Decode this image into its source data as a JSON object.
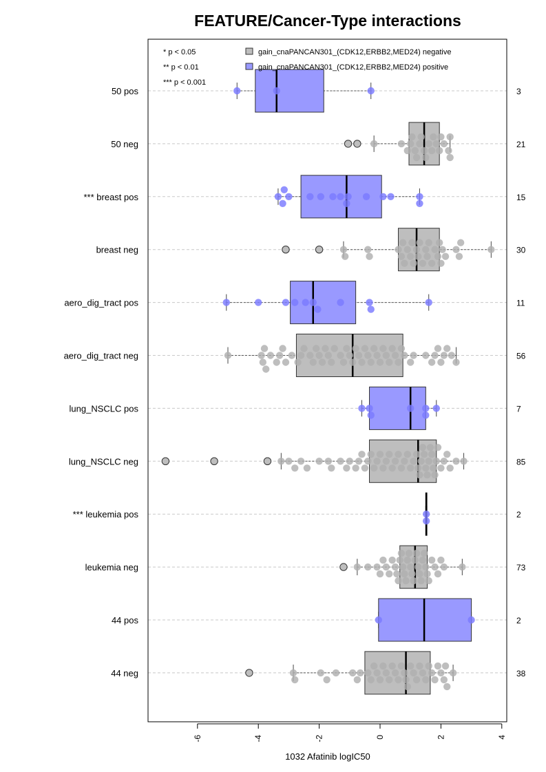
{
  "chart_data": {
    "type": "box",
    "orientation": "horizontal",
    "title": "FEATURE/Cancer-Type interactions",
    "xlabel": "1032 Afatinib logIC50",
    "xlim": [
      -7.2,
      4.0
    ],
    "xticks": [
      -6,
      -4,
      -2,
      0,
      2,
      4
    ],
    "xtick_labels": [
      "-6",
      "-4",
      "-2",
      "0",
      "2",
      "4"
    ],
    "significance_legend": [
      "* p < 0.05",
      "** p < 0.01",
      "*** p < 0.001"
    ],
    "legend": {
      "placement": "top",
      "entries": [
        {
          "name": "gain_cnaPANCAN301_(CDK12,ERBB2,MED24) negative",
          "color": "#bebebe"
        },
        {
          "name": "gain_cnaPANCAN301_(CDK12,ERBB2,MED24) positive",
          "color": "#9999ff"
        }
      ]
    },
    "colors": {
      "negative": "#bebebe",
      "positive": "#9999ff",
      "neg_point": "#b0b0b0",
      "pos_point": "#7a7aff"
    },
    "groups": [
      {
        "label": "50 pos",
        "n": "3",
        "type": "positive",
        "q1": -4.1,
        "median": -3.4,
        "q3": -1.85,
        "whisker_low": -4.7,
        "whisker_high": -0.3,
        "outliers": [],
        "points": [
          -4.7,
          -3.4,
          -0.3
        ]
      },
      {
        "label": "50 neg",
        "n": "21",
        "type": "negative",
        "q1": 0.95,
        "median": 1.45,
        "q3": 1.95,
        "whisker_low": -0.2,
        "whisker_high": 2.3,
        "outliers": [
          -1.05,
          -0.75
        ],
        "points": [
          -0.2,
          0.7,
          0.9,
          1.0,
          1.05,
          1.15,
          1.2,
          1.3,
          1.35,
          1.45,
          1.5,
          1.6,
          1.7,
          1.75,
          1.85,
          1.95,
          2.0,
          2.1,
          2.25,
          2.3,
          2.3
        ]
      },
      {
        "label": "*** breast pos",
        "n": "15",
        "type": "positive",
        "q1": -2.6,
        "median": -1.1,
        "q3": 0.05,
        "whisker_low": -3.35,
        "whisker_high": 1.3,
        "outliers": [],
        "points": [
          -3.35,
          -3.2,
          -3.15,
          -3.0,
          -2.3,
          -1.95,
          -1.55,
          -1.3,
          -1.1,
          -1.05,
          -0.45,
          0.1,
          0.35,
          1.3,
          1.3
        ]
      },
      {
        "label": "breast neg",
        "n": "30",
        "type": "negative",
        "q1": 0.6,
        "median": 1.2,
        "q3": 1.95,
        "whisker_low": -1.2,
        "whisker_high": 3.65,
        "outliers": [
          -3.1,
          -2.0
        ],
        "points": [
          -1.2,
          -1.15,
          -0.4,
          -0.35,
          0.6,
          0.7,
          0.75,
          0.8,
          0.9,
          1.0,
          1.05,
          1.1,
          1.2,
          1.25,
          1.3,
          1.4,
          1.5,
          1.55,
          1.6,
          1.7,
          1.8,
          1.9,
          1.95,
          2.0,
          2.05,
          2.15,
          2.5,
          2.6,
          2.65,
          3.65
        ]
      },
      {
        "label": "aero_dig_tract pos",
        "n": "11",
        "type": "positive",
        "q1": -2.95,
        "median": -2.2,
        "q3": -0.8,
        "whisker_low": -5.05,
        "whisker_high": 1.6,
        "outliers": [],
        "points": [
          -5.05,
          -4.0,
          -3.1,
          -2.8,
          -2.45,
          -2.2,
          -2.05,
          -1.3,
          -0.35,
          -0.3,
          1.6
        ]
      },
      {
        "label": "aero_dig_tract neg",
        "n": "56",
        "type": "negative",
        "q1": -2.75,
        "median": -0.9,
        "q3": 0.75,
        "whisker_low": -5.0,
        "whisker_high": 2.5,
        "outliers": [],
        "points": [
          -5.0,
          -3.9,
          -3.85,
          -3.8,
          -3.75,
          -3.6,
          -3.4,
          -3.3,
          -3.2,
          -3.1,
          -2.9,
          -2.7,
          -2.6,
          -2.5,
          -2.3,
          -2.2,
          -2.1,
          -2.0,
          -1.9,
          -1.8,
          -1.7,
          -1.6,
          -1.5,
          -1.3,
          -1.2,
          -1.1,
          -1.0,
          -0.9,
          -0.8,
          -0.7,
          -0.6,
          -0.5,
          -0.4,
          -0.3,
          -0.2,
          -0.1,
          0.0,
          0.1,
          0.2,
          0.3,
          0.4,
          0.5,
          0.6,
          0.7,
          0.8,
          1.0,
          1.1,
          1.5,
          1.7,
          1.8,
          1.9,
          2.0,
          2.1,
          2.2,
          2.35,
          2.5
        ]
      },
      {
        "label": "lung_NSCLC pos",
        "n": "7",
        "type": "positive",
        "q1": -0.35,
        "median": 1.0,
        "q3": 1.5,
        "whisker_low": -0.6,
        "whisker_high": 1.85,
        "outliers": [],
        "points": [
          -0.6,
          -0.35,
          -0.3,
          1.0,
          1.5,
          1.5,
          1.85
        ]
      },
      {
        "label": "lung_NSCLC neg",
        "n": "85",
        "type": "negative",
        "q1": -0.35,
        "median": 1.25,
        "q3": 1.85,
        "whisker_low": -3.25,
        "whisker_high": 2.75,
        "outliers": [
          -7.05,
          -5.45,
          -3.7
        ],
        "points": [
          -3.25,
          -3.0,
          -2.8,
          -2.6,
          -2.4,
          -2.0,
          -1.7,
          -1.6,
          -1.3,
          -1.1,
          -1.0,
          -0.8,
          -0.7,
          -0.6,
          -0.5,
          -0.4,
          -0.3,
          -0.2,
          -0.1,
          0.0,
          0.1,
          0.2,
          0.3,
          0.4,
          0.5,
          0.6,
          0.7,
          0.8,
          0.9,
          1.0,
          1.1,
          1.2,
          1.25,
          1.3,
          1.35,
          1.4,
          1.45,
          1.5,
          1.55,
          1.6,
          1.65,
          1.7,
          1.75,
          1.8,
          1.85,
          1.9,
          2.0,
          2.1,
          2.2,
          2.3,
          2.5,
          2.75
        ]
      },
      {
        "label": "*** leukemia pos",
        "n": "2",
        "type": "positive",
        "q1": 1.5,
        "median": 1.52,
        "q3": 1.54,
        "whisker_low": 1.5,
        "whisker_high": 1.54,
        "outliers": [],
        "points": [
          1.52,
          1.52
        ]
      },
      {
        "label": "leukemia neg",
        "n": "73",
        "type": "negative",
        "q1": 0.65,
        "median": 1.15,
        "q3": 1.55,
        "whisker_low": -0.75,
        "whisker_high": 2.7,
        "outliers": [
          -1.2
        ],
        "points": [
          -0.75,
          -0.4,
          -0.1,
          0.0,
          0.1,
          0.2,
          0.3,
          0.4,
          0.5,
          0.55,
          0.6,
          0.65,
          0.7,
          0.75,
          0.8,
          0.85,
          0.9,
          0.95,
          1.0,
          1.05,
          1.1,
          1.15,
          1.2,
          1.25,
          1.3,
          1.35,
          1.4,
          1.45,
          1.5,
          1.55,
          1.6,
          1.7,
          1.8,
          1.9,
          2.0,
          2.1,
          2.7
        ]
      },
      {
        "label": "44 pos",
        "n": "2",
        "type": "positive",
        "q1": -0.05,
        "median": 1.45,
        "q3": 3.0,
        "whisker_low": -0.05,
        "whisker_high": 3.0,
        "outliers": [],
        "points": [
          -0.05,
          3.0
        ]
      },
      {
        "label": "44 neg",
        "n": "38",
        "type": "negative",
        "q1": -0.5,
        "median": 0.85,
        "q3": 1.65,
        "whisker_low": -2.85,
        "whisker_high": 2.4,
        "outliers": [
          -4.3
        ],
        "points": [
          -2.85,
          -2.8,
          -1.95,
          -1.75,
          -1.45,
          -0.9,
          -0.75,
          -0.65,
          -0.4,
          -0.3,
          -0.2,
          -0.1,
          0.0,
          0.1,
          0.2,
          0.3,
          0.4,
          0.5,
          0.6,
          0.7,
          0.8,
          0.85,
          0.9,
          1.0,
          1.1,
          1.2,
          1.3,
          1.4,
          1.5,
          1.6,
          1.7,
          1.8,
          1.9,
          2.0,
          2.1,
          2.15,
          2.2,
          2.4
        ]
      }
    ]
  }
}
